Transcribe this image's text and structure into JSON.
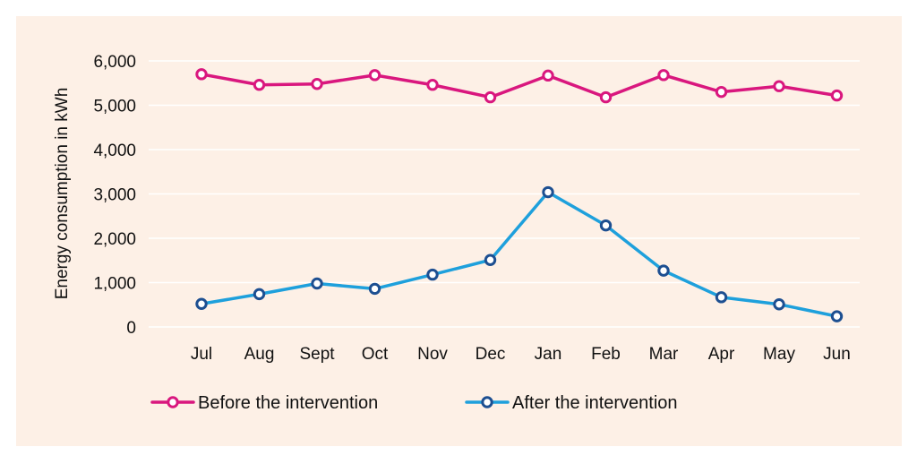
{
  "chart_data": {
    "type": "line",
    "categories": [
      "Jul",
      "Aug",
      "Sept",
      "Oct",
      "Nov",
      "Dec",
      "Jan",
      "Feb",
      "Mar",
      "Apr",
      "May",
      "Jun"
    ],
    "series": [
      {
        "name": "Before the intervention",
        "color": "#d9177e",
        "values": [
          5700,
          5460,
          5480,
          5680,
          5460,
          5180,
          5670,
          5180,
          5680,
          5300,
          5430,
          5220
        ]
      },
      {
        "name": "After the intervention",
        "color": "#1ea0dc",
        "marker_color": "#1d4f91",
        "values": [
          520,
          740,
          980,
          860,
          1180,
          1510,
          3040,
          2290,
          1270,
          670,
          510,
          240
        ]
      }
    ],
    "ylabel": "Energy consumption in kWh",
    "ylim": [
      0,
      6000
    ],
    "yticks": [
      0,
      1000,
      2000,
      3000,
      4000,
      5000,
      6000
    ],
    "ytick_labels": [
      "0",
      "1,000",
      "2,000",
      "3,000",
      "4,000",
      "5,000",
      "6,000"
    ],
    "grid": true,
    "legend_position": "bottom-left",
    "background": "#fdf0e6"
  }
}
